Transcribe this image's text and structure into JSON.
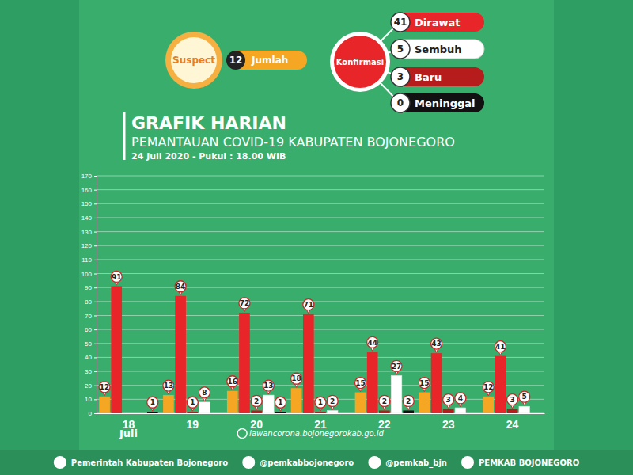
{
  "chart_data": {
    "type": "bar",
    "title": "GRAFIK HARIAN",
    "subtitle": "PEMANTAUAN COVID-19 KABUPATEN BOJONEGORO",
    "xlabel": "Juli",
    "annotations": [
      "24 Juli 2020 - Pukul : 18.00 WIB",
      "lawancorona.bojonegorokab.go.id",
      "Pemerintah Kabupaten Bojonegoro",
      "@pemkabbojonegoro",
      "@pemkab_bjn",
      "PEMKAB BOJONEGORO"
    ],
    "summary": {
      "label": "Konfirmasi",
      "total_label": "Jumlah",
      "values": [
        12,
        41,
        3,
        5,
        0
      ]
    },
    "categories": [
      "18",
      "19",
      "20",
      "21",
      "22",
      "23",
      "24"
    ],
    "series": [
      {
        "name": "Suspect",
        "color": "#f5a623",
        "values": [
          12,
          13,
          16,
          18,
          15,
          15,
          12
        ]
      },
      {
        "name": "Dirawat",
        "color": "#e8262a",
        "values": [
          91,
          84,
          72,
          71,
          44,
          43,
          41
        ]
      },
      {
        "name": "Baru",
        "color": "#b71c1c",
        "values": [
          null,
          1,
          2,
          1,
          2,
          3,
          3
        ]
      },
      {
        "name": "Sembuh",
        "color": "#ffffff",
        "values": [
          null,
          8,
          13,
          2,
          27,
          4,
          5
        ]
      },
      {
        "name": "Meninggal",
        "color": "#111111",
        "values": [
          1,
          null,
          1,
          null,
          2,
          null,
          null
        ]
      }
    ],
    "ylim": [
      0,
      170
    ],
    "yticks": [
      0,
      10,
      20,
      30,
      40,
      50,
      60,
      70,
      80,
      90,
      100,
      110,
      120,
      130,
      140,
      150,
      160,
      170
    ],
    "grid": true,
    "data_labels": true
  }
}
